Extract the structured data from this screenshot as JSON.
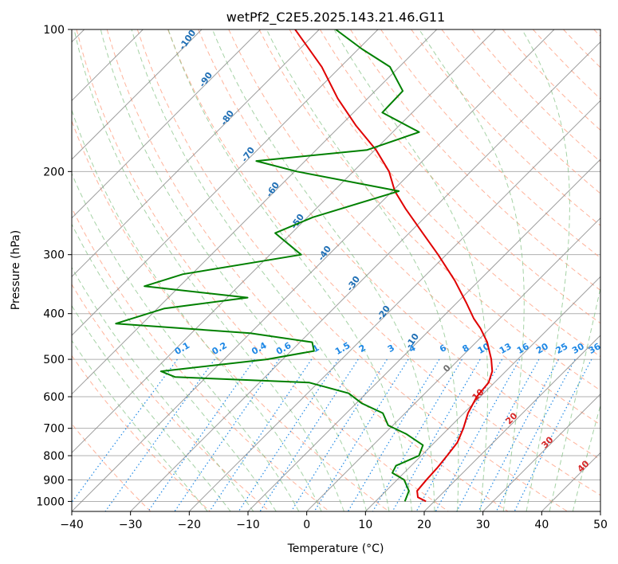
{
  "chart_data": {
    "type": "line",
    "title": "wetPf2_C2E5.2025.143.21.46.G11",
    "xlabel": "Temperature (°C)",
    "ylabel": "Pressure (hPa)",
    "xlim": [
      -40,
      50
    ],
    "ylim": [
      1050,
      100
    ],
    "yscale": "log",
    "grid": true,
    "x_ticks": [
      -40,
      -30,
      -20,
      -10,
      0,
      10,
      20,
      30,
      40,
      50
    ],
    "y_ticks": [
      100,
      200,
      300,
      400,
      500,
      600,
      700,
      800,
      900,
      1000
    ],
    "dry_adiabat_labels": [
      "-100",
      "-90",
      "-80",
      "-70",
      "-60",
      "-50",
      "-40",
      "-30",
      "-20",
      "-10"
    ],
    "mixing_ratio_labels": [
      "0.1",
      "0.2",
      "0.4",
      "0.6",
      "1",
      "1.5",
      "2",
      "3",
      "4",
      "6",
      "8",
      "10",
      "13",
      "16",
      "20",
      "25",
      "30",
      "36"
    ],
    "moist_adiabat_labels": [
      "0",
      "10",
      "20",
      "30",
      "40"
    ],
    "colors": {
      "temperature": "#e00000",
      "dewpoint": "#008000",
      "dry_adiabat": "#ff9a7a",
      "moist_adiabat": "#7fbf7f",
      "mixing_ratio": "#1e88e5",
      "isotherm": "#a0a0a0",
      "moist_label": "#d62728",
      "dry_label": "#1f6fb5"
    },
    "series": [
      {
        "name": "",
        "variable": "temperature",
        "points": [
          {
            "p": 1000,
            "t": 18.6
          },
          {
            "p": 980,
            "t": 16.5
          },
          {
            "p": 950,
            "t": 15.3
          },
          {
            "p": 900,
            "t": 15.0
          },
          {
            "p": 850,
            "t": 14.8
          },
          {
            "p": 800,
            "t": 14.4
          },
          {
            "p": 750,
            "t": 13.9
          },
          {
            "p": 700,
            "t": 12.5
          },
          {
            "p": 650,
            "t": 10.7
          },
          {
            "p": 600,
            "t": 9.4
          },
          {
            "p": 560,
            "t": 9.0
          },
          {
            "p": 530,
            "t": 7.7
          },
          {
            "p": 500,
            "t": 5.5
          },
          {
            "p": 460,
            "t": 1.9
          },
          {
            "p": 430,
            "t": -1.6
          },
          {
            "p": 410,
            "t": -4.4
          },
          {
            "p": 380,
            "t": -8.3
          },
          {
            "p": 340,
            "t": -14.2
          },
          {
            "p": 300,
            "t": -21.4
          },
          {
            "p": 270,
            "t": -27.7
          },
          {
            "p": 240,
            "t": -34.7
          },
          {
            "p": 220,
            "t": -39.6
          },
          {
            "p": 200,
            "t": -43.9
          },
          {
            "p": 180,
            "t": -49.8
          },
          {
            "p": 160,
            "t": -57.3
          },
          {
            "p": 140,
            "t": -65.1
          },
          {
            "p": 120,
            "t": -73.2
          },
          {
            "p": 100,
            "t": -84.1
          }
        ]
      },
      {
        "name": "",
        "variable": "dewpoint",
        "points": [
          {
            "p": 1000,
            "t": 15.0
          },
          {
            "p": 950,
            "t": 13.9
          },
          {
            "p": 900,
            "t": 11.2
          },
          {
            "p": 870,
            "t": 8.0
          },
          {
            "p": 840,
            "t": 7.4
          },
          {
            "p": 800,
            "t": 9.6
          },
          {
            "p": 760,
            "t": 8.5
          },
          {
            "p": 720,
            "t": 3.8
          },
          {
            "p": 690,
            "t": -0.8
          },
          {
            "p": 650,
            "t": -3.8
          },
          {
            "p": 620,
            "t": -9.0
          },
          {
            "p": 590,
            "t": -13.0
          },
          {
            "p": 560,
            "t": -21.5
          },
          {
            "p": 545,
            "t": -45.3
          },
          {
            "p": 530,
            "t": -48.7
          },
          {
            "p": 500,
            "t": -32.7
          },
          {
            "p": 480,
            "t": -26.1
          },
          {
            "p": 460,
            "t": -27.9
          },
          {
            "p": 440,
            "t": -40.0
          },
          {
            "p": 420,
            "t": -64.5
          },
          {
            "p": 390,
            "t": -58.8
          },
          {
            "p": 370,
            "t": -46.5
          },
          {
            "p": 350,
            "t": -66.0
          },
          {
            "p": 330,
            "t": -61.5
          },
          {
            "p": 300,
            "t": -44.7
          },
          {
            "p": 270,
            "t": -52.8
          },
          {
            "p": 250,
            "t": -49.1
          },
          {
            "p": 220,
            "t": -38.9
          },
          {
            "p": 200,
            "t": -59.6
          },
          {
            "p": 190,
            "t": -68.3
          },
          {
            "p": 180,
            "t": -51.3
          },
          {
            "p": 165,
            "t": -45.5
          },
          {
            "p": 150,
            "t": -55.1
          },
          {
            "p": 135,
            "t": -55.3
          },
          {
            "p": 120,
            "t": -61.6
          },
          {
            "p": 110,
            "t": -69.4
          },
          {
            "p": 100,
            "t": -77.2
          }
        ]
      }
    ]
  }
}
